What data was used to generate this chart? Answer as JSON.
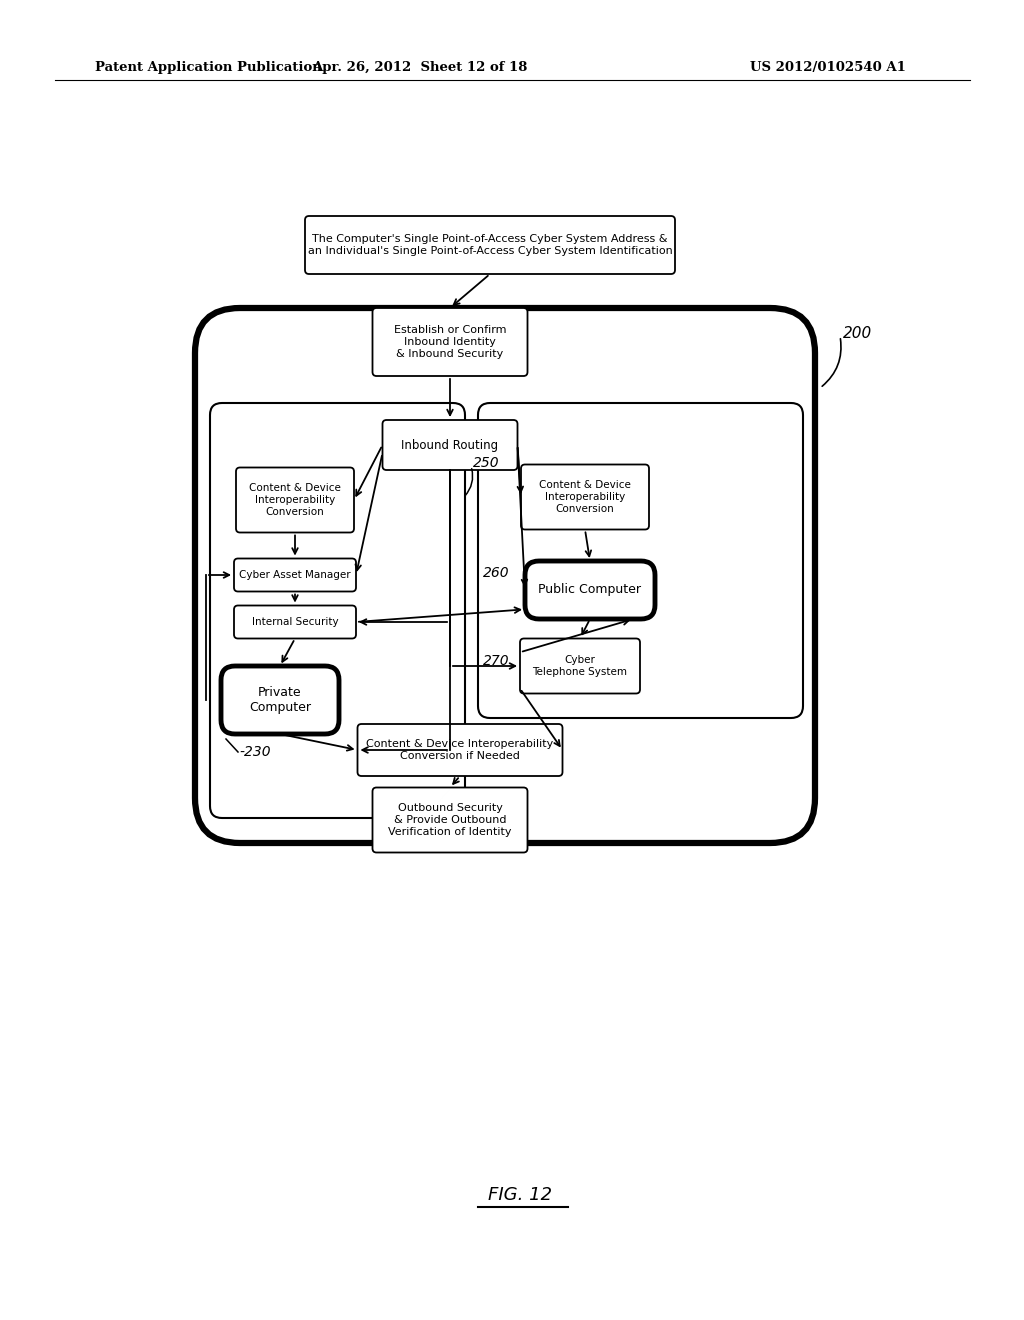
{
  "bg_color": "#ffffff",
  "header_left": "Patent Application Publication",
  "header_mid": "Apr. 26, 2012  Sheet 12 of 18",
  "header_right": "US 2012/0102540 A1",
  "fig_label": "FIG. 12",
  "label_200": "200",
  "label_230": "-230",
  "label_250": "250",
  "label_260": "260",
  "label_270": "270",
  "box_top_text": "The Computer's Single Point-of-Access Cyber System Address &\nan Individual's Single Point-of-Access Cyber System Identification",
  "box_establish": "Establish or Confirm\nInbound Identity\n& Inbound Security",
  "box_inbound_routing": "Inbound Routing",
  "box_content_device_left": "Content & Device\nInteroperability\nConversion",
  "box_cyber_asset": "Cyber Asset Manager",
  "box_internal_security": "Internal Security",
  "box_private_computer": "Private\nComputer",
  "box_content_device_right": "Content & Device\nInteroperability\nConversion",
  "box_public_computer": "Public Computer",
  "box_cyber_telephone": "Cyber\nTelephone System",
  "box_content_device_bottom": "Content & Device Interoperability\nConversion if Needed",
  "box_outbound": "Outbound Security\n& Provide Outbound\nVerification of Identity"
}
